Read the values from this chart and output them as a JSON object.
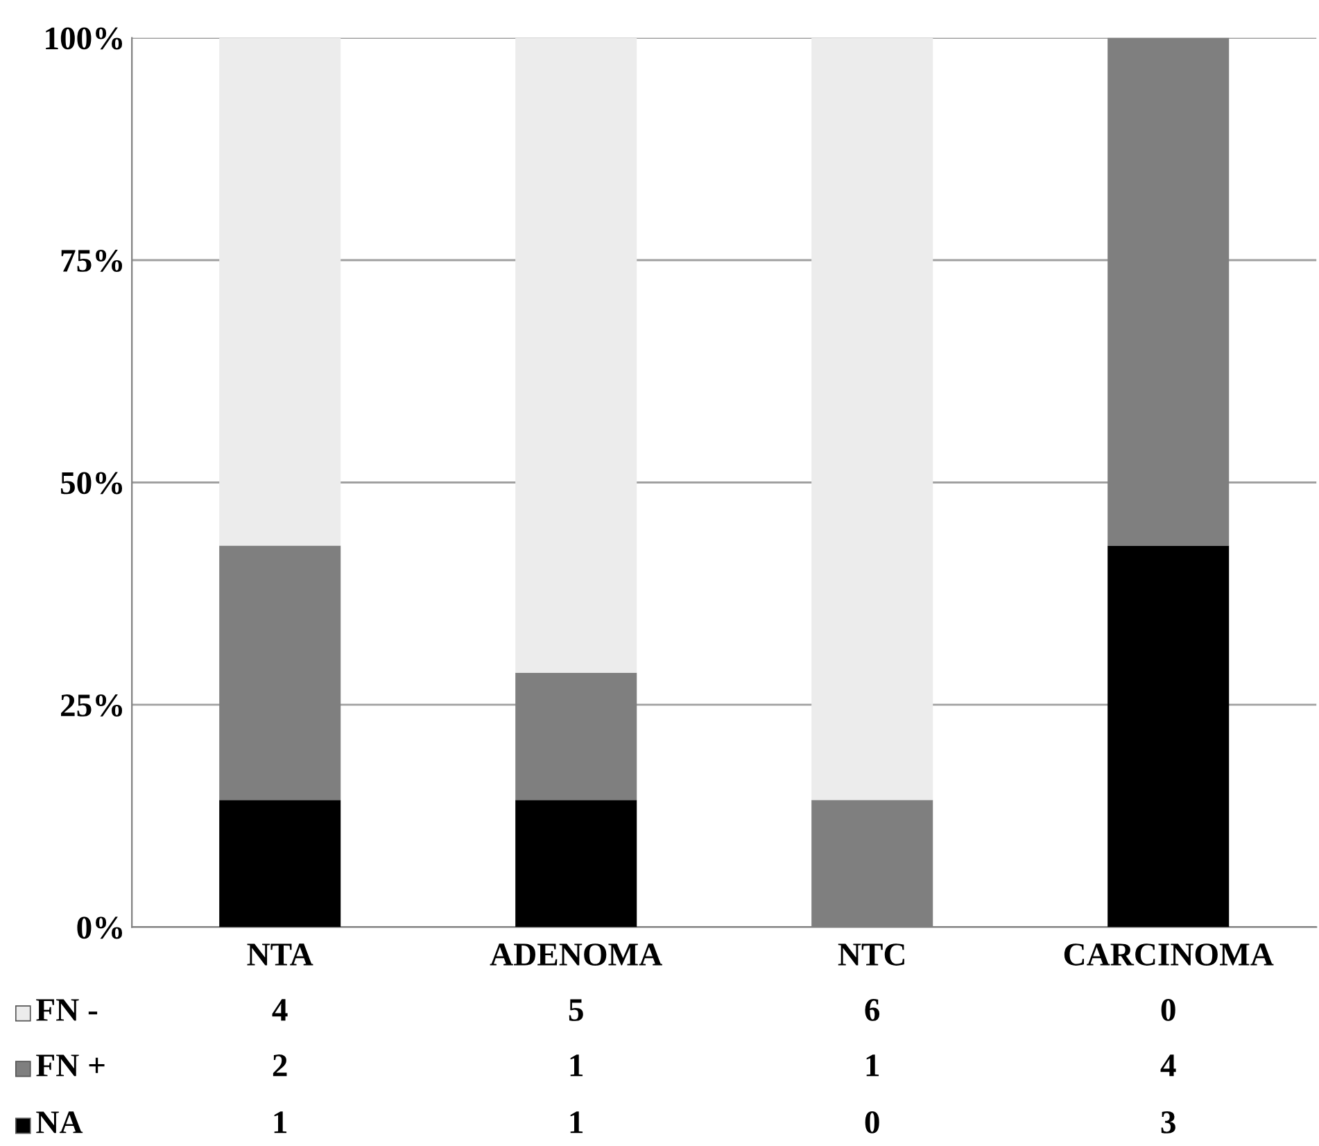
{
  "chart_data": {
    "type": "bar",
    "stacked": true,
    "categories": [
      "NTA",
      "ADENOMA",
      "NTC",
      "CARCINOMA"
    ],
    "series": [
      {
        "name": "NA",
        "color": "#000000",
        "values": [
          14.3,
          14.3,
          0,
          42.9
        ]
      },
      {
        "name": "FN +",
        "color": "#7f7f7f",
        "values": [
          28.6,
          14.3,
          14.3,
          57.1
        ]
      },
      {
        "name": "FN -",
        "color": "#ececec",
        "values": [
          57.1,
          71.4,
          85.7,
          0
        ]
      }
    ],
    "annotations": [
      "4",
      "5",
      "6",
      "0",
      "2",
      "1",
      "1",
      "4",
      "1",
      "1",
      "0",
      "3"
    ],
    "ylim": [
      0,
      100
    ],
    "yticks": [
      {
        "value": 0,
        "label": "0%"
      },
      {
        "value": 25,
        "label": "25%"
      },
      {
        "value": 50,
        "label": "50%"
      },
      {
        "value": 75,
        "label": "75%"
      },
      {
        "value": 100,
        "label": "100%"
      }
    ],
    "grid": "y",
    "legend": "bottom"
  }
}
